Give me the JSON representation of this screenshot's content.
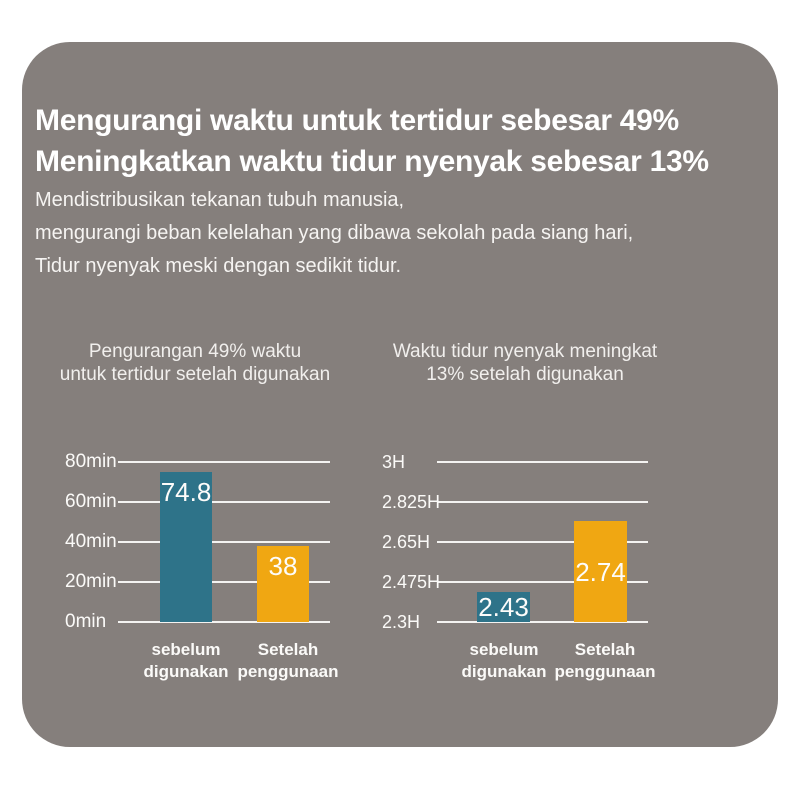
{
  "header": {
    "title_line1": "Mengurangi waktu untuk tertidur sebesar 49%",
    "title_line2": "Meningkatkan waktu tidur nyenyak sebesar 13%",
    "body_lines": [
      "Mendistribusikan tekanan tubuh manusia,",
      "mengurangi beban kelelahan yang dibawa sekolah pada siang hari,",
      "Tidur nyenyak meski dengan sedikit tidur."
    ]
  },
  "colors": {
    "card_bg": "#857f7c",
    "teal": "#2e7389",
    "orange": "#f0a712",
    "gridline": "#f4f3f1",
    "text": "#ffffff"
  },
  "chart_data": [
    {
      "type": "bar",
      "title": "Pengurangan 49% waktu untuk tertidur setelah digunakan",
      "title_lines": [
        "Pengurangan 49% waktu",
        "untuk tertidur setelah digunakan"
      ],
      "ylabel": "",
      "xlabel": "",
      "unit": "min",
      "ylim": [
        0,
        80
      ],
      "yticks": [
        {
          "label": "80min",
          "value": 80
        },
        {
          "label": "60min",
          "value": 60
        },
        {
          "label": "40min",
          "value": 40
        },
        {
          "label": "20min",
          "value": 20
        },
        {
          "label": "0min",
          "value": 0
        }
      ],
      "categories": [
        "sebelum digunakan",
        "Setelah penggunaan"
      ],
      "bars": [
        {
          "label_lines": [
            "sebelum",
            "digunakan"
          ],
          "value": 74.8,
          "display": "74.8",
          "color_key": "teal"
        },
        {
          "label_lines": [
            "Setelah",
            "penggunaan"
          ],
          "value": 38,
          "display": "38",
          "color_key": "orange"
        }
      ],
      "grid": true,
      "legend": "none"
    },
    {
      "type": "bar",
      "title": "Waktu tidur nyenyak meningkat 13% setelah digunakan",
      "title_lines": [
        "Waktu tidur nyenyak meningkat",
        "13% setelah digunakan"
      ],
      "ylabel": "",
      "xlabel": "",
      "unit": "H",
      "ylim": [
        2.3,
        3.0
      ],
      "yticks": [
        {
          "label": "3H",
          "value": 3.0
        },
        {
          "label": "2.825H",
          "value": 2.825
        },
        {
          "label": "2.65H",
          "value": 2.65
        },
        {
          "label": "2.475H",
          "value": 2.475
        },
        {
          "label": "2.3H",
          "value": 2.3
        }
      ],
      "categories": [
        "sebelum digunakan",
        "Setelah penggunaan"
      ],
      "bars": [
        {
          "label_lines": [
            "sebelum",
            "digunakan"
          ],
          "value": 2.43,
          "display": "2.43",
          "color_key": "teal"
        },
        {
          "label_lines": [
            "Setelah",
            "penggunaan"
          ],
          "value": 2.74,
          "display": "2.74",
          "color_key": "orange"
        }
      ],
      "grid": true,
      "legend": "none"
    }
  ]
}
